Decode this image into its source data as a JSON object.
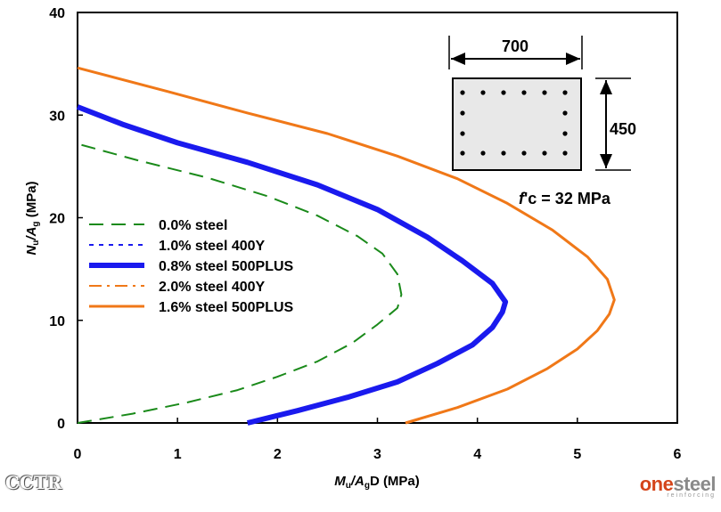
{
  "chart_data": {
    "type": "line",
    "xlabel": {
      "prefix": "M",
      "sub1": "u",
      "mid": "/A",
      "sub2": "g",
      "suffix": "D (MPa)"
    },
    "ylabel": {
      "prefix": "N",
      "sub1": "u",
      "mid": "/A",
      "sub2": "g",
      "suffix": " (MPa)"
    },
    "xlim": [
      0,
      6
    ],
    "ylim": [
      0,
      40
    ],
    "xticks": [
      "0",
      "1",
      "2",
      "3",
      "4",
      "5",
      "6"
    ],
    "yticks": [
      "0",
      "10",
      "20",
      "30",
      "40"
    ],
    "grid": false,
    "legend_position": "left",
    "series": [
      {
        "name": "0.0% steel",
        "color": "#1a8a1a",
        "style": "dashed-long",
        "width": 2,
        "x": [
          0.0,
          0.55,
          1.1,
          1.6,
          2.0,
          2.4,
          2.75,
          3.0,
          3.2,
          3.24,
          3.2,
          3.05,
          2.8,
          2.4,
          1.9,
          1.3,
          0.6,
          0.0
        ],
        "y": [
          0.0,
          0.9,
          2.0,
          3.2,
          4.5,
          6.0,
          7.8,
          9.6,
          11.2,
          12.5,
          14.5,
          16.5,
          18.2,
          20.2,
          22.1,
          23.9,
          25.6,
          27.2
        ]
      },
      {
        "name": "1.0% steel  400Y",
        "color": "#1a1aee",
        "style": "dotted",
        "width": 2,
        "x": [
          1.72,
          2.2,
          2.7,
          3.2,
          3.6,
          3.95,
          4.15,
          4.25,
          4.27,
          4.15,
          3.85,
          3.5,
          3.0,
          2.4,
          1.7,
          1.0,
          0.45,
          0.0
        ],
        "y": [
          0.0,
          1.2,
          2.5,
          4.0,
          5.8,
          7.6,
          9.3,
          10.8,
          11.8,
          13.6,
          15.8,
          18.1,
          20.8,
          23.2,
          25.4,
          27.3,
          29.1,
          30.8
        ]
      },
      {
        "name": "0.8% steel  500PLUS",
        "color": "#1a1aee",
        "style": "solid",
        "width": 6,
        "x": [
          1.7,
          2.2,
          2.7,
          3.2,
          3.6,
          3.95,
          4.15,
          4.25,
          4.28,
          4.15,
          3.85,
          3.5,
          3.0,
          2.4,
          1.7,
          1.0,
          0.45,
          0.0
        ],
        "y": [
          0.0,
          1.2,
          2.5,
          4.0,
          5.8,
          7.6,
          9.3,
          10.8,
          11.8,
          13.6,
          15.8,
          18.1,
          20.8,
          23.2,
          25.4,
          27.3,
          29.1,
          30.8
        ]
      },
      {
        "name": "2.0% steel  400Y",
        "color": "#f07818",
        "style": "dashdot",
        "width": 2,
        "x": [
          3.3,
          3.8,
          4.3,
          4.7,
          5.0,
          5.2,
          5.32,
          5.37,
          5.3,
          5.1,
          4.75,
          4.3,
          3.8,
          3.2,
          2.5,
          1.7,
          0.9,
          0.0
        ],
        "y": [
          0.0,
          1.5,
          3.3,
          5.3,
          7.2,
          9.0,
          10.6,
          12.0,
          14.0,
          16.2,
          18.8,
          21.4,
          23.8,
          26.0,
          28.2,
          30.2,
          32.3,
          34.6
        ]
      },
      {
        "name": "1.6% steel  500PLUS",
        "color": "#f07818",
        "style": "solid",
        "width": 3,
        "x": [
          3.28,
          3.8,
          4.3,
          4.7,
          5.0,
          5.2,
          5.32,
          5.37,
          5.3,
          5.1,
          4.75,
          4.3,
          3.8,
          3.2,
          2.5,
          1.7,
          0.9,
          0.0
        ],
        "y": [
          0.0,
          1.5,
          3.3,
          5.3,
          7.2,
          9.0,
          10.6,
          12.0,
          14.0,
          16.2,
          18.8,
          21.4,
          23.8,
          26.0,
          28.2,
          30.2,
          32.3,
          34.6
        ]
      }
    ],
    "annotations": {
      "width_dim": "700",
      "depth_dim": "450",
      "concrete_prefix": "f",
      "concrete_text": "'c = 32 MPa"
    }
  },
  "logos": {
    "left": "CCTR",
    "right_one": "one",
    "right_steel": "steel",
    "right_sub": "reinforcing"
  }
}
